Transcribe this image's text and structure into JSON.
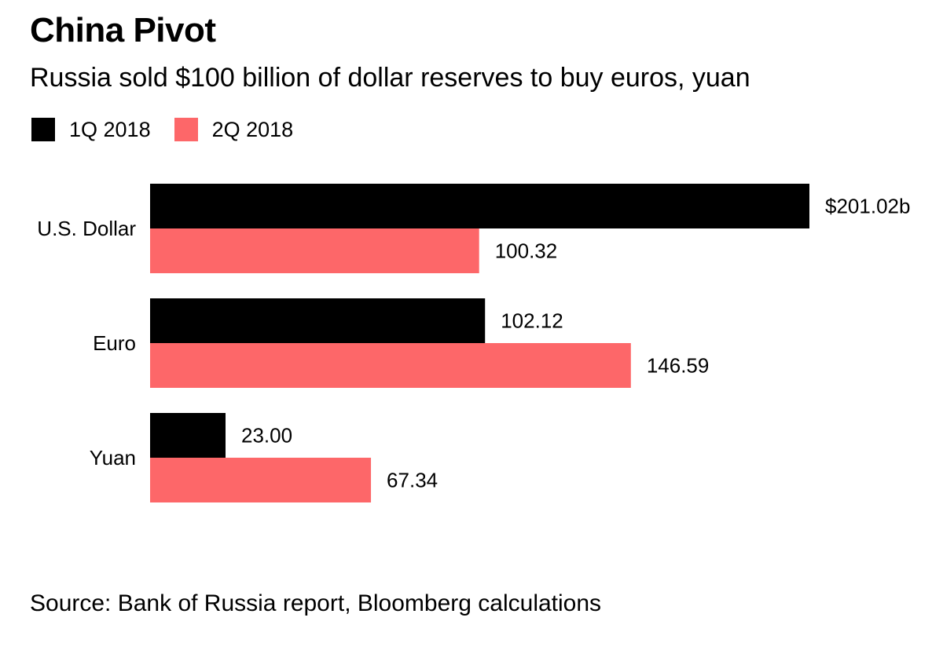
{
  "header": {
    "title": "China Pivot",
    "subtitle": "Russia sold $100 billion of dollar reserves to buy euros, yuan"
  },
  "legend": {
    "placement": "top-left",
    "items": [
      {
        "label": "1Q 2018",
        "color": "#000000"
      },
      {
        "label": "2Q 2018",
        "color": "#fd6769"
      }
    ]
  },
  "chart_data": {
    "type": "bar",
    "orientation": "horizontal",
    "categories": [
      "U.S. Dollar",
      "Euro",
      "Yuan"
    ],
    "series": [
      {
        "name": "1Q 2018",
        "color": "#000000",
        "values": [
          201.02,
          102.12,
          23.0
        ],
        "labels": [
          "$201.02b",
          "102.12",
          "23.00"
        ]
      },
      {
        "name": "2Q 2018",
        "color": "#fd6769",
        "values": [
          100.32,
          146.59,
          67.34
        ],
        "labels": [
          "100.32",
          "146.59",
          "67.34"
        ]
      }
    ],
    "xlim": [
      0,
      201.02
    ],
    "grid": false
  },
  "footer": {
    "source": "Source: Bank of Russia report, Bloomberg calculations"
  }
}
